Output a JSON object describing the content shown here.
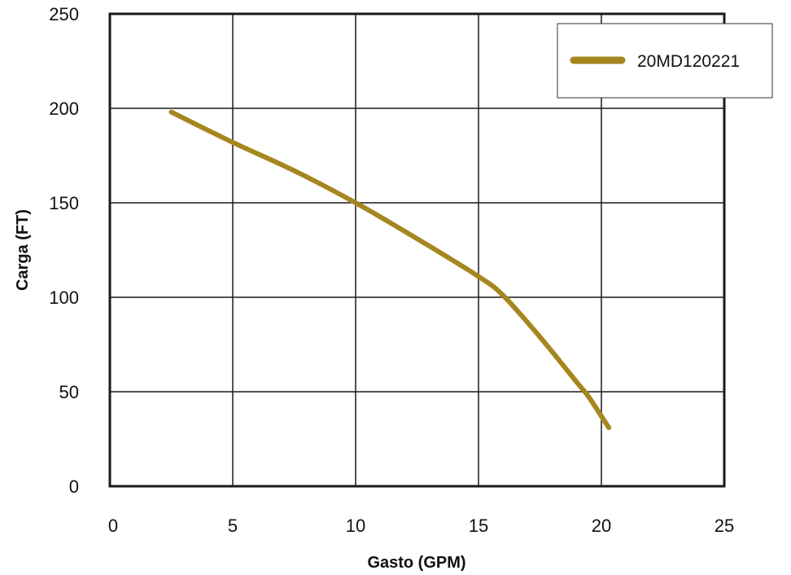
{
  "chart_data": {
    "type": "line",
    "title": "",
    "xlabel": "Gasto (GPM)",
    "ylabel": "Carga (FT)",
    "xlim": [
      0,
      25
    ],
    "ylim": [
      0,
      250
    ],
    "x_ticks": [
      "0",
      "5",
      "10",
      "15",
      "20",
      "25"
    ],
    "y_ticks": [
      "0",
      "50",
      "100",
      "150",
      "200",
      "250"
    ],
    "grid": true,
    "legend_position": "top-right",
    "series": [
      {
        "name": "20MD120221",
        "color": "#a6861f",
        "x": [
          2.5,
          5,
          7.5,
          10,
          12.5,
          15,
          16,
          17.5,
          19,
          19.5,
          20.3
        ],
        "y": [
          198,
          182,
          167,
          150,
          131,
          111,
          101,
          79,
          55,
          47,
          31
        ]
      }
    ]
  },
  "colors": {
    "frame": "#1a1a1a",
    "grid": "#1a1a1a",
    "background": "#ffffff"
  }
}
